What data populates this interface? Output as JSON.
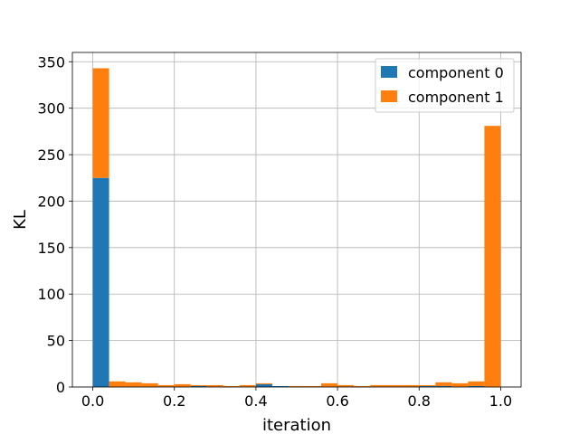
{
  "chart_data": {
    "type": "bar",
    "subtype": "histogram",
    "stacked": true,
    "title": "",
    "xlabel": "iteration",
    "ylabel": "KL",
    "xlim": [
      -0.05,
      1.05
    ],
    "ylim": [
      0,
      360
    ],
    "grid": true,
    "legend_position": "top-right",
    "bin_edges": [
      0.0,
      0.04,
      0.08,
      0.12,
      0.16,
      0.2,
      0.24,
      0.28,
      0.32,
      0.36,
      0.4,
      0.44,
      0.48,
      0.52,
      0.56,
      0.6,
      0.64,
      0.68,
      0.72,
      0.76,
      0.8,
      0.84,
      0.88,
      0.92,
      0.96,
      1.0
    ],
    "xticks": [
      "0.0",
      "0.2",
      "0.4",
      "0.6",
      "0.8",
      "1.0"
    ],
    "yticks": [
      "0",
      "50",
      "100",
      "150",
      "200",
      "250",
      "300",
      "350"
    ],
    "series": [
      {
        "name": "component 0",
        "color": "#1f77b4",
        "values": [
          225,
          0,
          0,
          0,
          0,
          0,
          1,
          0,
          0,
          0,
          3,
          1,
          0,
          0,
          0,
          0,
          0,
          0,
          0,
          0,
          1,
          1,
          0,
          1,
          0
        ]
      },
      {
        "name": "component 1",
        "color": "#ff7f0e",
        "values": [
          118,
          6,
          5,
          4,
          2,
          3,
          1,
          2,
          1,
          2,
          1,
          0,
          1,
          1,
          4,
          2,
          1,
          2,
          2,
          2,
          1,
          4,
          4,
          5,
          281
        ]
      }
    ]
  }
}
